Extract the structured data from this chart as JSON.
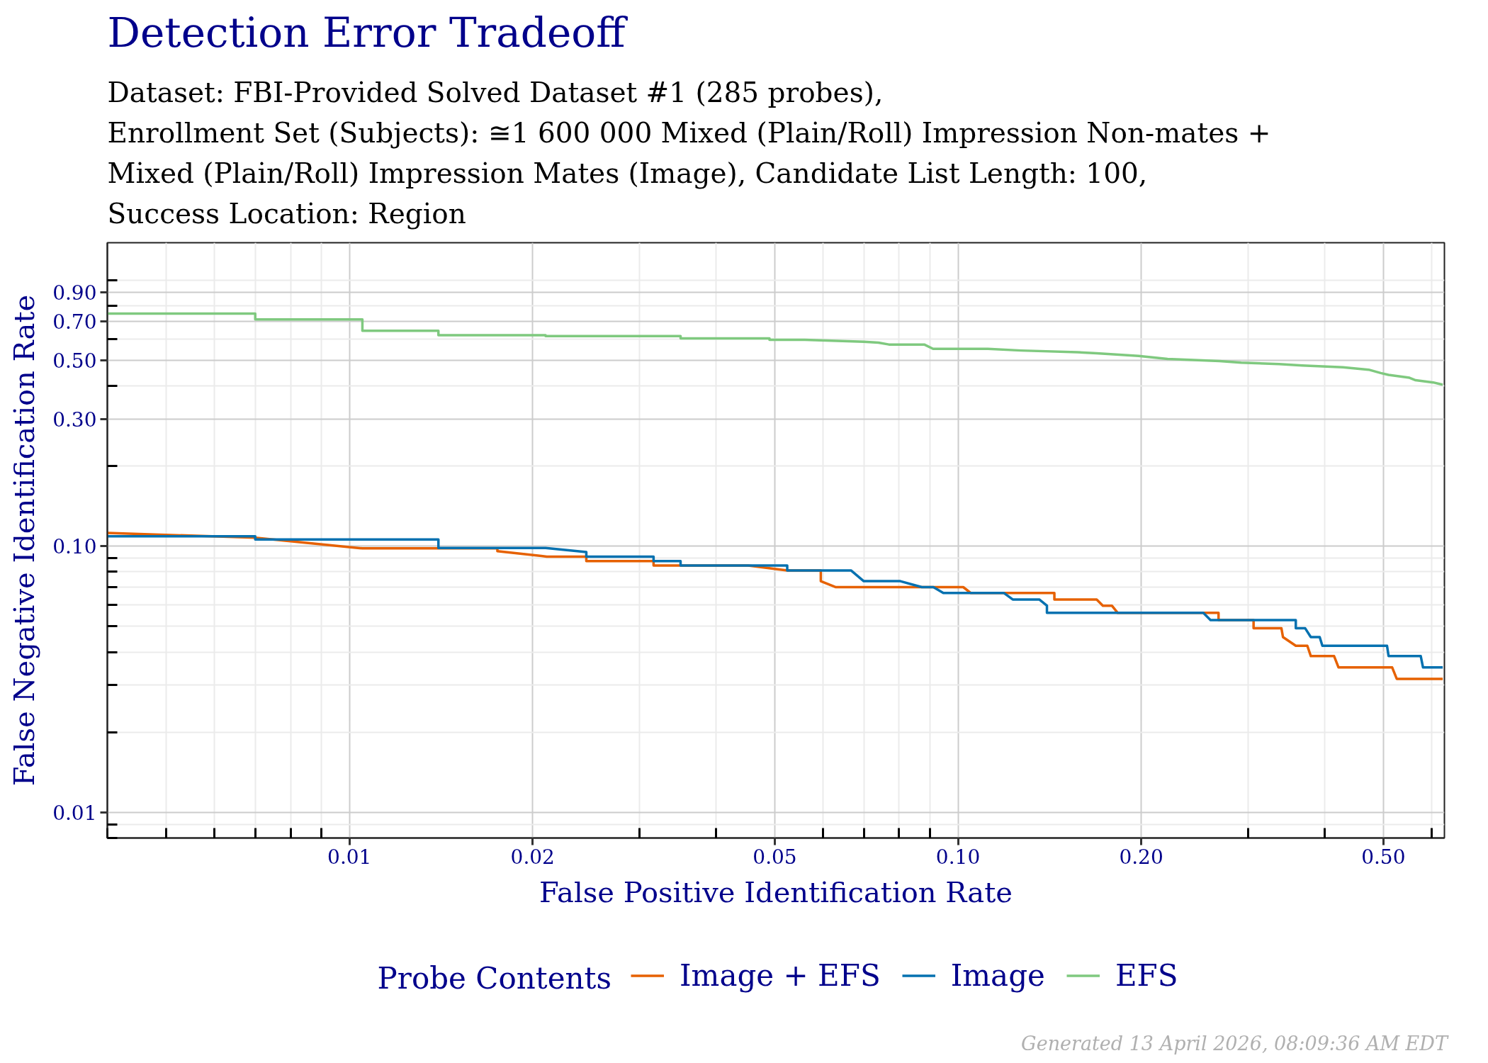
{
  "chart_data": {
    "type": "line",
    "title": "Detection Error Tradeoff",
    "subtitle": "Dataset: FBI-Provided Solved Dataset #1 (285 probes),\nEnrollment Set (Subjects): ≅1 600 000 Mixed (Plain/Roll) Impression Non-mates +\nMixed (Plain/Roll) Impression Mates (Image), Candidate List Length: 100,\nSuccess Location: Region",
    "xlabel": "False Positive Identification Rate",
    "ylabel": "False Negative Identification Rate",
    "legend_title": "Probe Contents",
    "annotations": [
      "Generated 13 April 2026, 08:09:36 AM EDT"
    ],
    "log": "xy",
    "grid": true,
    "legend": "bottom",
    "xlim": [
      0.004,
      0.63
    ],
    "ylim": [
      0.008,
      1.38
    ],
    "xticks": [
      0.01,
      0.02,
      0.05,
      {
        "value": 0.1,
        "label": "0.10"
      },
      {
        "value": 0.2,
        "label": "0.20"
      },
      {
        "value": 0.5,
        "label": "0.50"
      },
      {
        "value": 0.004,
        "label": null
      },
      {
        "value": 0.005,
        "label": null
      },
      {
        "value": 0.006,
        "label": null
      },
      {
        "value": 0.007,
        "label": null
      },
      {
        "value": 0.008,
        "label": null
      },
      {
        "value": 0.009,
        "label": null
      },
      {
        "value": 0.03,
        "label": null
      },
      {
        "value": 0.04,
        "label": null
      },
      {
        "value": 0.06,
        "label": null
      },
      {
        "value": 0.07,
        "label": null
      },
      {
        "value": 0.08,
        "label": null
      },
      {
        "value": 0.09,
        "label": null
      },
      {
        "value": 0.3,
        "label": null
      },
      {
        "value": 0.4,
        "label": null
      },
      {
        "value": 0.6,
        "label": null
      }
    ],
    "yticks": [
      0.01,
      {
        "value": 0.1,
        "label": "0.10"
      },
      {
        "value": 0.3,
        "label": "0.30"
      },
      {
        "value": 0.5,
        "label": "0.50"
      },
      {
        "value": 0.7,
        "label": "0.70"
      },
      {
        "value": 0.9,
        "label": "0.90"
      },
      {
        "value": 0.008,
        "label": null
      },
      {
        "value": 0.009,
        "label": null
      },
      {
        "value": 0.02,
        "label": null
      },
      {
        "value": 0.03,
        "label": null
      },
      {
        "value": 0.04,
        "label": null
      },
      {
        "value": 0.05,
        "label": null
      },
      {
        "value": 0.06,
        "label": null
      },
      {
        "value": 0.07,
        "label": null
      },
      {
        "value": 0.08,
        "label": null
      },
      {
        "value": 0.09,
        "label": null
      },
      {
        "value": 0.2,
        "label": null
      },
      {
        "value": 0.4,
        "label": null
      },
      {
        "value": 0.6,
        "label": null
      },
      {
        "value": 0.8,
        "label": null
      },
      {
        "value": 1.0,
        "label": null
      }
    ],
    "series": [
      {
        "name": "Image + EFS",
        "color": "#e66101",
        "x": [
          0.004,
          0.007,
          0.0105,
          0.0175,
          0.0175,
          0.0211,
          0.0245,
          0.0245,
          0.0316,
          0.0316,
          0.0452,
          0.0524,
          0.0595,
          0.0595,
          0.063,
          0.102,
          0.105,
          0.144,
          0.144,
          0.169,
          0.173,
          0.179,
          0.183,
          0.268,
          0.268,
          0.306,
          0.306,
          0.34,
          0.342,
          0.359,
          0.375,
          0.38,
          0.415,
          0.422,
          0.517,
          0.526,
          0.626
        ],
        "values": [
          0.112,
          0.1075,
          0.098,
          0.098,
          0.0957,
          0.0913,
          0.0913,
          0.0878,
          0.0878,
          0.0845,
          0.0845,
          0.081,
          0.081,
          0.0738,
          0.0701,
          0.0701,
          0.0666,
          0.0666,
          0.063,
          0.063,
          0.0597,
          0.0597,
          0.0561,
          0.0561,
          0.0527,
          0.0527,
          0.0491,
          0.0491,
          0.0455,
          0.0422,
          0.0422,
          0.0386,
          0.0386,
          0.035,
          0.035,
          0.0317,
          0.0317
        ]
      },
      {
        "name": "Image",
        "color": "#0571b0",
        "x": [
          0.004,
          0.007,
          0.007,
          0.014,
          0.014,
          0.021,
          0.0245,
          0.0245,
          0.0316,
          0.0316,
          0.035,
          0.035,
          0.0524,
          0.0524,
          0.0667,
          0.07,
          0.0804,
          0.0872,
          0.0911,
          0.0946,
          0.119,
          0.123,
          0.136,
          0.14,
          0.14,
          0.253,
          0.26,
          0.359,
          0.359,
          0.372,
          0.38,
          0.393,
          0.397,
          0.507,
          0.51,
          0.576,
          0.581,
          0.626
        ],
        "values": [
          0.1088,
          0.1088,
          0.1059,
          0.1059,
          0.0983,
          0.0983,
          0.0949,
          0.0913,
          0.0913,
          0.0878,
          0.0878,
          0.0845,
          0.0845,
          0.081,
          0.081,
          0.0738,
          0.0738,
          0.0701,
          0.0701,
          0.0666,
          0.0666,
          0.063,
          0.063,
          0.0597,
          0.0561,
          0.0561,
          0.0527,
          0.0527,
          0.0491,
          0.0491,
          0.0455,
          0.0455,
          0.0422,
          0.0422,
          0.0386,
          0.0386,
          0.035,
          0.035
        ]
      },
      {
        "name": "EFS",
        "color": "#7fc97f",
        "x": [
          0.004,
          0.007,
          0.007,
          0.0105,
          0.0105,
          0.014,
          0.014,
          0.021,
          0.021,
          0.035,
          0.035,
          0.049,
          0.049,
          0.056,
          0.07,
          0.074,
          0.077,
          0.088,
          0.091,
          0.112,
          0.127,
          0.157,
          0.169,
          0.198,
          0.221,
          0.269,
          0.292,
          0.337,
          0.368,
          0.429,
          0.473,
          0.495,
          0.51,
          0.552,
          0.565,
          0.604,
          0.626
        ],
        "values": [
          0.747,
          0.747,
          0.711,
          0.711,
          0.644,
          0.644,
          0.62,
          0.62,
          0.615,
          0.615,
          0.603,
          0.603,
          0.596,
          0.596,
          0.586,
          0.581,
          0.572,
          0.572,
          0.551,
          0.551,
          0.543,
          0.535,
          0.53,
          0.518,
          0.505,
          0.496,
          0.489,
          0.483,
          0.477,
          0.47,
          0.46,
          0.447,
          0.44,
          0.429,
          0.42,
          0.412,
          0.404
        ]
      }
    ]
  }
}
